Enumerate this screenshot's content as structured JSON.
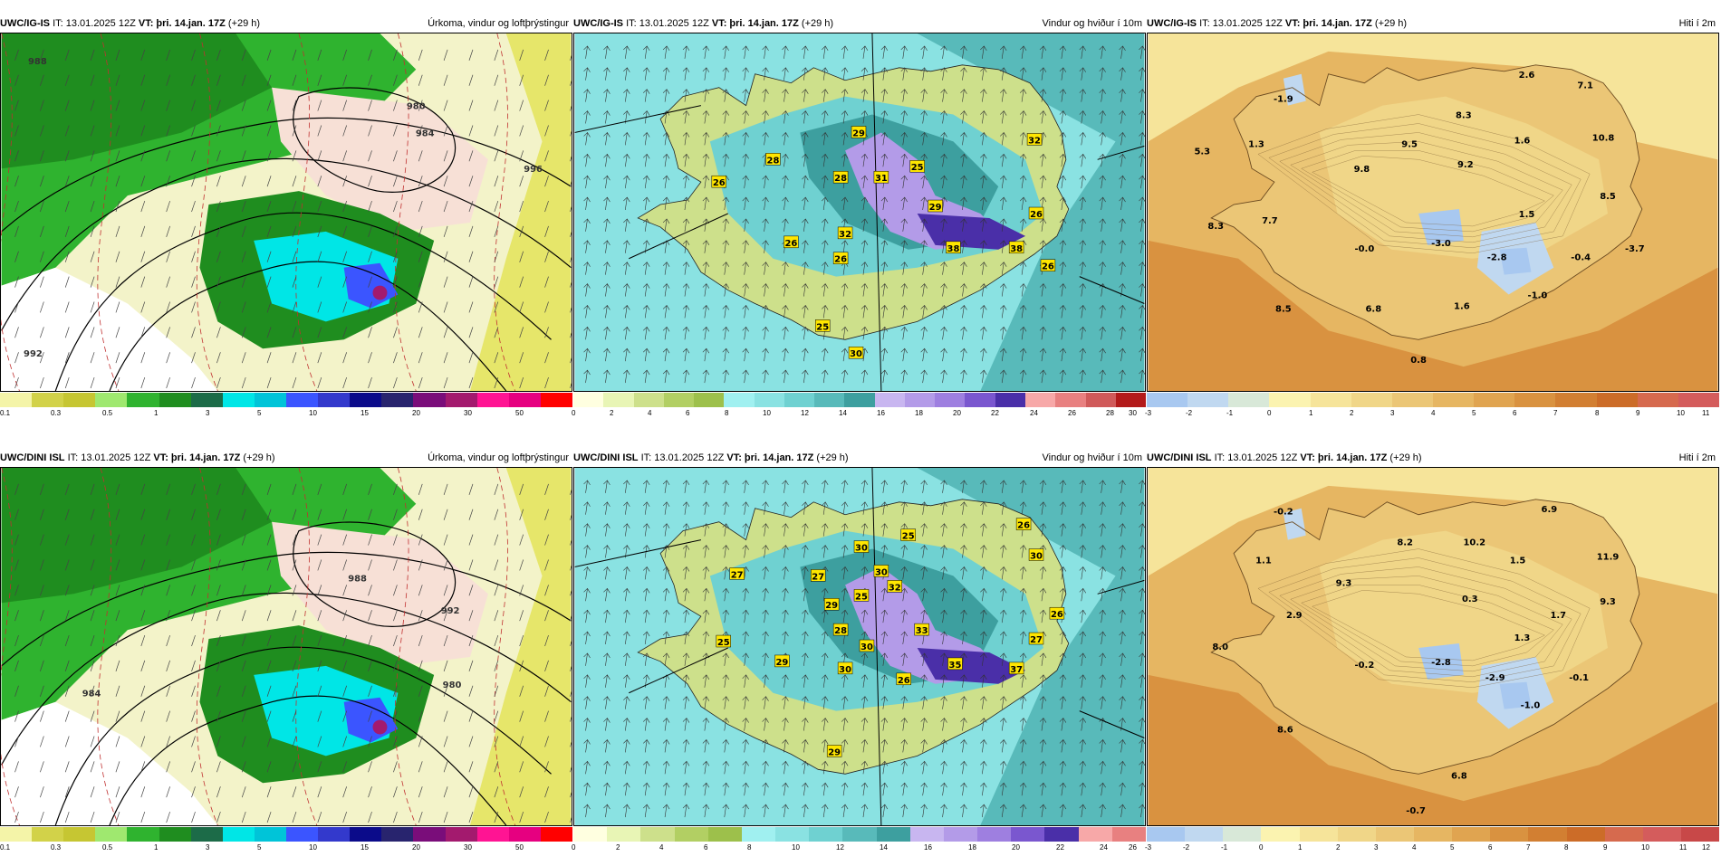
{
  "panels": [
    {
      "id": "p1",
      "model": "UWC/IG-IS",
      "it_label": "IT: 13.01.2025 12Z",
      "vt_prefix": "VT:",
      "vt_value": "þri. 14.jan. 17Z",
      "vt_offset": "(+29 h)",
      "title": "Úrkoma, vindur og loftþrýstingur",
      "type": "precip",
      "colorbar": {
        "colors": [
          "#f4f4a8",
          "#d2d249",
          "#c6c632",
          "#9fe86f",
          "#2fb32f",
          "#1f8d1f",
          "#1c6b48",
          "#00e6e6",
          "#00c4d8",
          "#3b55ff",
          "#3339cc",
          "#0b0b8a",
          "#28246e",
          "#7a0d7a",
          "#a31a6e",
          "#ff1493",
          "#e60080",
          "#ff0000"
        ],
        "ticks": [
          "0.1",
          "0.3",
          "0.5",
          "1",
          "3",
          "5",
          "10",
          "15",
          "20",
          "30",
          "50"
        ]
      },
      "labels": [
        {
          "t": "988"
        },
        {
          "t": "992"
        },
        {
          "t": "980"
        },
        {
          "t": "984"
        },
        {
          "t": "996"
        }
      ]
    },
    {
      "id": "p2",
      "model": "UWC/IG-IS",
      "it_label": "IT: 13.01.2025 12Z",
      "vt_prefix": "VT:",
      "vt_value": "þri. 14.jan. 17Z",
      "vt_offset": "(+29 h)",
      "title": "Vindur og hviður í 10m",
      "type": "wind",
      "colorbar": {
        "colors": [
          "#ffffe0",
          "#e8f5b5",
          "#cde08b",
          "#b2cf63",
          "#9dc04b",
          "#a0f0f0",
          "#8ae2e2",
          "#6fd1d1",
          "#58baba",
          "#3d9f9f",
          "#c8b6f0",
          "#b39be8",
          "#9e7fe0",
          "#7a57cf",
          "#4a2fa8",
          "#f7a8a8",
          "#e88080",
          "#d05a5a",
          "#b31a1a"
        ],
        "ticks": [
          "0",
          "2",
          "4",
          "6",
          "8",
          "10",
          "12",
          "14",
          "16",
          "18",
          "20",
          "22",
          "24",
          "26",
          "28",
          "30"
        ]
      },
      "labels": [
        {
          "t": "29"
        },
        {
          "t": "28"
        },
        {
          "t": "26"
        },
        {
          "t": "28"
        },
        {
          "t": "31"
        },
        {
          "t": "25"
        },
        {
          "t": "32"
        },
        {
          "t": "32"
        },
        {
          "t": "29"
        },
        {
          "t": "26"
        },
        {
          "t": "26"
        },
        {
          "t": "26"
        },
        {
          "t": "38"
        },
        {
          "t": "38"
        },
        {
          "t": "26"
        },
        {
          "t": "25"
        },
        {
          "t": "30"
        }
      ]
    },
    {
      "id": "p3",
      "model": "UWC/IG-IS",
      "it_label": "IT: 13.01.2025 12Z",
      "vt_prefix": "VT:",
      "vt_value": "þri. 14.jan. 17Z",
      "vt_offset": "(+29 h)",
      "title": "Hiti í 2m",
      "type": "temp",
      "colorbar": {
        "colors": [
          "#a8c8f0",
          "#c0d8f0",
          "#d8e8d8",
          "#fbf3b0",
          "#f6e49a",
          "#f0d688",
          "#ebc676",
          "#e6b662",
          "#e0a450",
          "#d99240",
          "#d27f32",
          "#cc6c28",
          "#d66a4e",
          "#d45c5c"
        ],
        "ticks": [
          "-3",
          "-2",
          "-1",
          "0",
          "1",
          "2",
          "3",
          "4",
          "5",
          "6",
          "7",
          "8",
          "9",
          "10",
          "11"
        ]
      },
      "labels": [
        {
          "t": "2.6"
        },
        {
          "t": "7.1"
        },
        {
          "t": "-1.9"
        },
        {
          "t": "8.3"
        },
        {
          "t": "5.3"
        },
        {
          "t": "1.3"
        },
        {
          "t": "9.5"
        },
        {
          "t": "1.6"
        },
        {
          "t": "10.8"
        },
        {
          "t": "9.8"
        },
        {
          "t": "9.2"
        },
        {
          "t": "8.5"
        },
        {
          "t": "7.7"
        },
        {
          "t": "1.5"
        },
        {
          "t": "8.3"
        },
        {
          "t": "-0.0"
        },
        {
          "t": "-3.0"
        },
        {
          "t": "-2.8"
        },
        {
          "t": "-0.4"
        },
        {
          "t": "-3.7"
        },
        {
          "t": "-1.0"
        },
        {
          "t": "8.5"
        },
        {
          "t": "6.8"
        },
        {
          "t": "1.6"
        },
        {
          "t": "0.8"
        }
      ]
    },
    {
      "id": "p4",
      "model": "UWC/DINI ISL",
      "it_label": "IT: 13.01.2025 12Z",
      "vt_prefix": "VT:",
      "vt_value": "þri. 14.jan. 17Z",
      "vt_offset": "(+29 h)",
      "title": "Úrkoma, vindur og loftþrýstingur",
      "type": "precip",
      "colorbar": {
        "colors": [
          "#f4f4a8",
          "#d2d249",
          "#c6c632",
          "#9fe86f",
          "#2fb32f",
          "#1f8d1f",
          "#1c6b48",
          "#00e6e6",
          "#00c4d8",
          "#3b55ff",
          "#3339cc",
          "#0b0b8a",
          "#28246e",
          "#7a0d7a",
          "#a31a6e",
          "#ff1493",
          "#e60080",
          "#ff0000"
        ],
        "ticks": [
          "0.1",
          "0.3",
          "0.5",
          "1",
          "3",
          "5",
          "10",
          "15",
          "20",
          "30",
          "50"
        ]
      },
      "labels": [
        {
          "t": "988"
        },
        {
          "t": "992"
        },
        {
          "t": "984"
        },
        {
          "t": "980"
        }
      ]
    },
    {
      "id": "p5",
      "model": "UWC/DINI ISL",
      "it_label": "IT: 13.01.2025 12Z",
      "vt_prefix": "VT:",
      "vt_value": "þri. 14.jan. 17Z",
      "vt_offset": "(+29 h)",
      "title": "Vindur og hviður í 10m",
      "type": "wind",
      "colorbar": {
        "colors": [
          "#ffffe0",
          "#e8f5b5",
          "#cde08b",
          "#b2cf63",
          "#9dc04b",
          "#a0f0f0",
          "#8ae2e2",
          "#6fd1d1",
          "#58baba",
          "#3d9f9f",
          "#c8b6f0",
          "#b39be8",
          "#9e7fe0",
          "#7a57cf",
          "#4a2fa8",
          "#f7a8a8",
          "#e88080"
        ],
        "ticks": [
          "0",
          "2",
          "4",
          "6",
          "8",
          "10",
          "12",
          "14",
          "16",
          "18",
          "20",
          "22",
          "24",
          "26"
        ]
      },
      "labels": [
        {
          "t": "26"
        },
        {
          "t": "25"
        },
        {
          "t": "30"
        },
        {
          "t": "27"
        },
        {
          "t": "27"
        },
        {
          "t": "30"
        },
        {
          "t": "30"
        },
        {
          "t": "29"
        },
        {
          "t": "25"
        },
        {
          "t": "32"
        },
        {
          "t": "28"
        },
        {
          "t": "33"
        },
        {
          "t": "26"
        },
        {
          "t": "25"
        },
        {
          "t": "30"
        },
        {
          "t": "27"
        },
        {
          "t": "29"
        },
        {
          "t": "30"
        },
        {
          "t": "35"
        },
        {
          "t": "37"
        },
        {
          "t": "26"
        },
        {
          "t": "29"
        }
      ]
    },
    {
      "id": "p6",
      "model": "UWC/DINI ISL",
      "it_label": "IT: 13.01.2025 12Z",
      "vt_prefix": "VT:",
      "vt_value": "þri. 14.jan. 17Z",
      "vt_offset": "(+29 h)",
      "title": "Hiti í 2m",
      "type": "temp",
      "colorbar": {
        "colors": [
          "#a8c8f0",
          "#c0d8f0",
          "#d8e8d8",
          "#fbf3b0",
          "#f6e49a",
          "#f0d688",
          "#ebc676",
          "#e6b662",
          "#e0a450",
          "#d99240",
          "#d27f32",
          "#cc6c28",
          "#d66a4e",
          "#d45c5c",
          "#c84848"
        ],
        "ticks": [
          "-3",
          "-2",
          "-1",
          "0",
          "1",
          "2",
          "3",
          "4",
          "5",
          "6",
          "7",
          "8",
          "9",
          "10",
          "11",
          "12"
        ]
      },
      "labels": [
        {
          "t": "-0.2"
        },
        {
          "t": "6.9"
        },
        {
          "t": "8.2"
        },
        {
          "t": "10.2"
        },
        {
          "t": "1.1"
        },
        {
          "t": "1.5"
        },
        {
          "t": "11.9"
        },
        {
          "t": "9.3"
        },
        {
          "t": "0.3"
        },
        {
          "t": "2.9"
        },
        {
          "t": "1.7"
        },
        {
          "t": "9.3"
        },
        {
          "t": "1.3"
        },
        {
          "t": "8.0"
        },
        {
          "t": "-0.2"
        },
        {
          "t": "-2.8"
        },
        {
          "t": "-2.9"
        },
        {
          "t": "-0.1"
        },
        {
          "t": "-1.0"
        },
        {
          "t": "8.6"
        },
        {
          "t": "6.8"
        },
        {
          "t": "-0.7"
        }
      ]
    }
  ]
}
